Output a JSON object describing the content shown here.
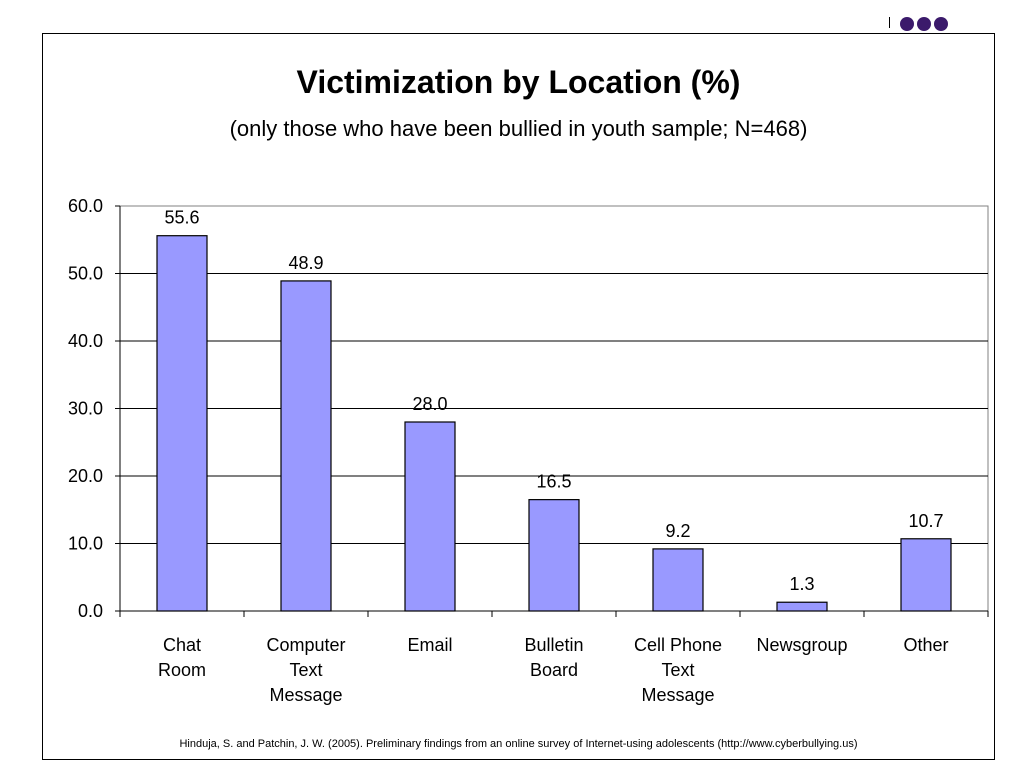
{
  "chart_data": {
    "type": "bar",
    "title": "Victimization by Location (%)",
    "subtitle": "(only those who have been bullied in youth sample; N=468)",
    "categories": [
      [
        "Chat",
        "Room"
      ],
      [
        "Computer",
        "Text",
        "Message"
      ],
      [
        "Email"
      ],
      [
        "Bulletin",
        "Board"
      ],
      [
        "Cell Phone",
        "Text",
        "Message"
      ],
      [
        "Newsgroup"
      ],
      [
        "Other"
      ]
    ],
    "values": [
      55.6,
      48.9,
      28.0,
      16.5,
      9.2,
      1.3,
      10.7
    ],
    "value_labels": [
      "55.6",
      "48.9",
      "28.0",
      "16.5",
      "9.2",
      "1.3",
      "10.7"
    ],
    "yticks": [
      "0.0",
      "10.0",
      "20.0",
      "30.0",
      "40.0",
      "50.0",
      "60.0"
    ],
    "ylim": [
      0,
      60
    ],
    "grid": true,
    "xlabel": "",
    "ylabel": "",
    "bar_color": "#9999ff",
    "footnote": "Hinduja, S. and Patchin, J. W.  (2005).  Preliminary findings from an online survey of Internet-using adolescents (http://www.cyberbullying.us)"
  },
  "decor": {
    "dot_color": "#3b1a6b"
  }
}
